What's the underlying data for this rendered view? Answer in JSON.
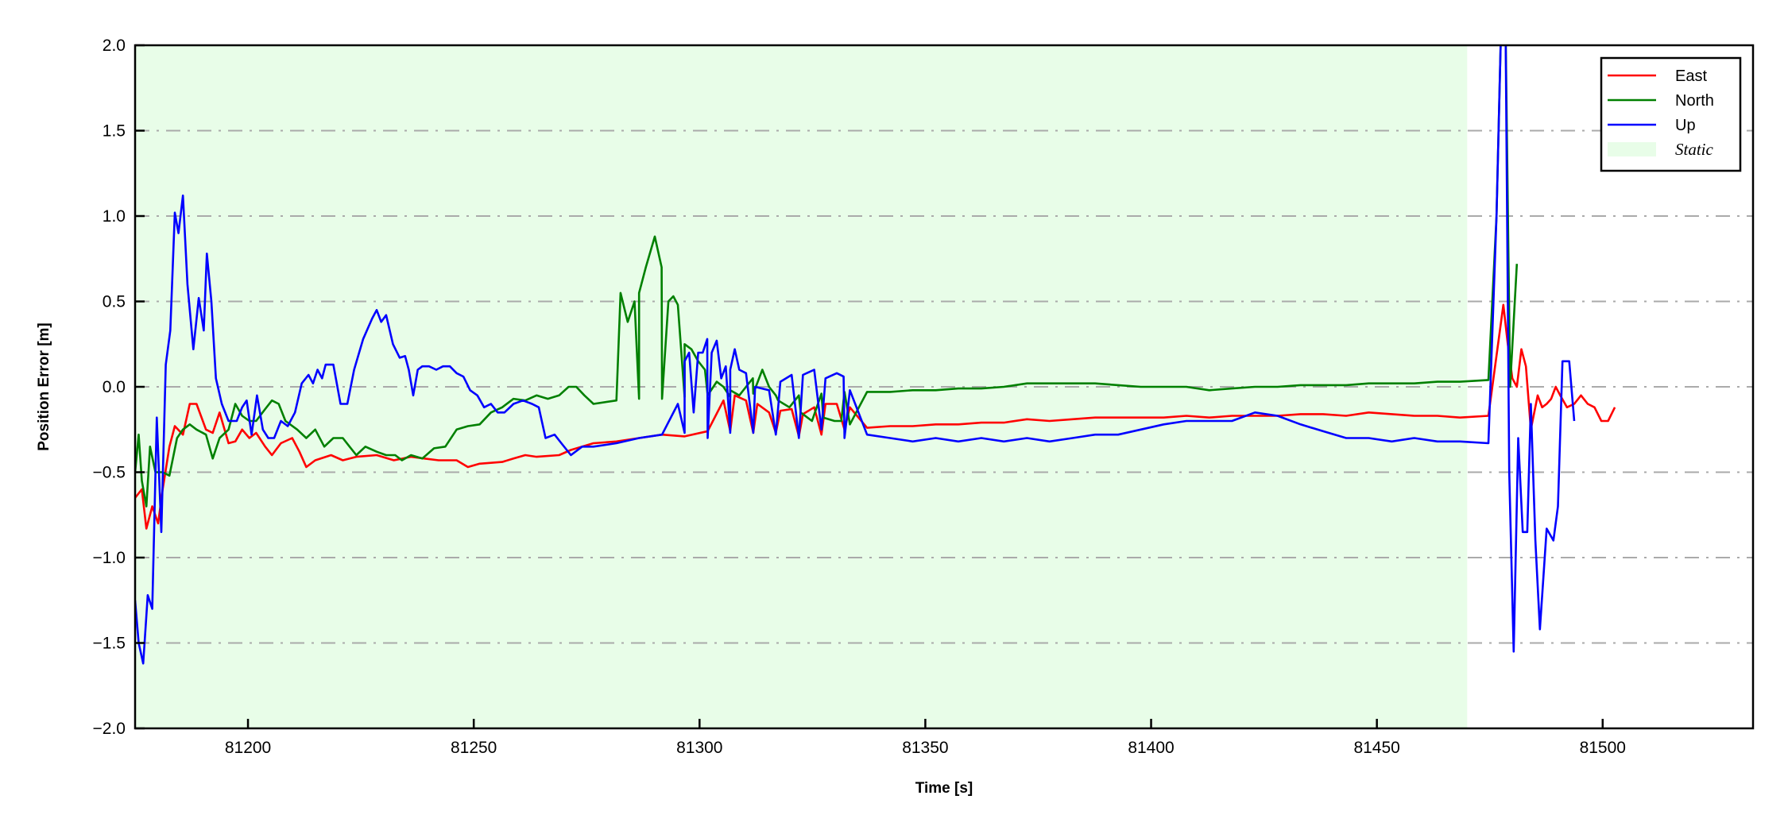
{
  "chart_data": {
    "type": "line",
    "title": "",
    "xlabel": "Time [s]",
    "ylabel": "Position Error [m]",
    "xlim": [
      81175.0,
      81533.3
    ],
    "ylim": [
      -2.0,
      2.0
    ],
    "xticks": [
      81200,
      81250,
      81300,
      81350,
      81400,
      81450,
      81500
    ],
    "xtick_labels": [
      "81200",
      "81250",
      "81300",
      "81350",
      "81400",
      "81450",
      "81500"
    ],
    "yticks": [
      -2.0,
      -1.5,
      -1.0,
      -0.5,
      0.0,
      0.5,
      1.0,
      1.5,
      2.0
    ],
    "ytick_labels": [
      "−2.0",
      "−1.5",
      "−1.0",
      "−0.5",
      "0.0",
      "0.5",
      "1.0",
      "1.5",
      "2.0"
    ],
    "grid": "horizontal dash-dot",
    "grid_color": "#aaaaaa",
    "legend_placement": "top-right",
    "shaded_regions": [
      {
        "name": "Static",
        "x": [
          81175.0,
          81470.0
        ],
        "color": "#e8fde8"
      }
    ],
    "series": [
      {
        "name": "East",
        "color": "#ff0000",
        "x": [
          81175.0,
          81176.5,
          81177.5,
          81178.8,
          81180.1,
          81181.1,
          81182.6,
          81183.8,
          81185.6,
          81187.1,
          81188.6,
          81190.7,
          81192.2,
          81193.7,
          81195.7,
          81197.2,
          81198.7,
          81200.3,
          81201.8,
          81203.8,
          81205.3,
          81207.3,
          81209.8,
          81211.4,
          81212.9,
          81214.9,
          81218.4,
          81221.0,
          81224.0,
          81228.5,
          81232.3,
          81236.1,
          81239.1,
          81242.2,
          81246.2,
          81248.7,
          81251.3,
          81256.3,
          81258.8,
          81261.4,
          81263.9,
          81268.9,
          81271.5,
          81276.5,
          81281.6,
          81286.6,
          81291.7,
          81296.7,
          81301.8,
          81306.8,
          81311.9,
          81316.9,
          81322.0,
          81327.0,
          81332.1,
          81337.1,
          81342.2,
          81347.2,
          81352.3,
          81357.3,
          81362.4,
          81367.4,
          81372.5,
          81377.5,
          81382.6,
          81387.6,
          81392.7,
          81397.7,
          81402.8,
          81407.8,
          81412.9,
          81417.9,
          81423.0,
          81428.0,
          81433.1,
          81438.1,
          81443.2,
          81448.2,
          81453.3,
          81458.3,
          81463.4,
          81468.4,
          81474.7,
          81478.0,
          81479.0,
          81480.0,
          81481.0,
          81482.0,
          81483.0,
          81484.1,
          81485.6,
          81486.6,
          81487.6,
          81488.6,
          81489.6,
          81490.6,
          81492.1,
          81493.7,
          81495.2,
          81496.7,
          81498.2,
          81499.7,
          81501.2,
          81502.7,
          81305.3,
          81307.8,
          81310.3,
          81312.8,
          81315.4,
          81317.9,
          81320.4,
          81322.9,
          81325.4,
          81327.9,
          81330.4,
          81333.3
        ],
        "y": [
          -0.65,
          -0.6,
          -0.83,
          -0.7,
          -0.8,
          -0.6,
          -0.35,
          -0.23,
          -0.28,
          -0.1,
          -0.1,
          -0.25,
          -0.27,
          -0.15,
          -0.33,
          -0.32,
          -0.25,
          -0.3,
          -0.27,
          -0.35,
          -0.4,
          -0.33,
          -0.3,
          -0.38,
          -0.47,
          -0.43,
          -0.4,
          -0.43,
          -0.41,
          -0.4,
          -0.43,
          -0.41,
          -0.42,
          -0.43,
          -0.43,
          -0.47,
          -0.45,
          -0.44,
          -0.42,
          -0.4,
          -0.41,
          -0.4,
          -0.37,
          -0.33,
          -0.32,
          -0.3,
          -0.28,
          -0.29,
          -0.26,
          -0.26,
          -0.27,
          -0.27,
          -0.29,
          -0.28,
          -0.25,
          -0.24,
          -0.23,
          -0.23,
          -0.22,
          -0.22,
          -0.21,
          -0.21,
          -0.19,
          -0.2,
          -0.19,
          -0.18,
          -0.18,
          -0.18,
          -0.18,
          -0.17,
          -0.18,
          -0.17,
          -0.17,
          -0.17,
          -0.16,
          -0.16,
          -0.17,
          -0.15,
          -0.16,
          -0.17,
          -0.17,
          -0.18,
          -0.17,
          0.48,
          0.25,
          0.05,
          0.0,
          0.22,
          0.12,
          -0.25,
          -0.05,
          -0.12,
          -0.1,
          -0.07,
          0.0,
          -0.05,
          -0.12,
          -0.1,
          -0.05,
          -0.1,
          -0.12,
          -0.2,
          -0.2,
          -0.12,
          -0.08,
          -0.05,
          -0.08,
          -0.1,
          -0.15,
          -0.14,
          -0.13,
          -0.16,
          -0.12,
          -0.1,
          -0.1,
          -0.12
        ]
      },
      {
        "name": "North",
        "color": "#008000",
        "x": [
          81175.0,
          81175.8,
          81176.5,
          81177.5,
          81178.3,
          81179.5,
          81181.1,
          81182.6,
          81184.3,
          81185.6,
          81187.1,
          81188.6,
          81190.7,
          81192.2,
          81193.7,
          81195.7,
          81197.2,
          81198.7,
          81200.3,
          81201.8,
          81203.8,
          81205.3,
          81206.8,
          81208.3,
          81210.9,
          81212.9,
          81214.9,
          81216.9,
          81218.9,
          81221.0,
          81222.5,
          81224.0,
          81226.0,
          81228.5,
          81230.6,
          81232.6,
          81234.1,
          81236.1,
          81238.6,
          81241.2,
          81243.7,
          81246.2,
          81248.7,
          81251.3,
          81253.8,
          81256.3,
          81258.8,
          81261.4,
          81263.9,
          81266.4,
          81268.9,
          81271.0,
          81272.7,
          81274.5,
          81276.5,
          81281.6,
          81286.6,
          81291.7,
          81296.7,
          81301.8,
          81306.8,
          81311.9,
          81316.9,
          81322.0,
          81327.0,
          81332.1,
          81337.1,
          81342.2,
          81347.2,
          81352.3,
          81357.3,
          81362.4,
          81367.4,
          81372.5,
          81377.5,
          81382.6,
          81387.6,
          81392.7,
          81397.7,
          81402.8,
          81407.8,
          81412.9,
          81417.9,
          81423.0,
          81428.0,
          81433.1,
          81438.1,
          81443.2,
          81448.2,
          81453.3,
          81458.3,
          81463.4,
          81468.4,
          81474.7,
          81476.5,
          81477.5,
          81478.5,
          81479.5,
          81481.0,
          81282.5,
          81284.1,
          81285.6,
          81286.6,
          81288.1,
          81290.1,
          81291.6,
          81293.1,
          81294.2,
          81295.2,
          81296.7,
          81298.2,
          81299.7,
          81301.2,
          81303.8,
          81305.3,
          81306.8,
          81308.8,
          81310.3,
          81311.8,
          81313.9,
          81315.4,
          81317.4,
          81319.9,
          81322.4,
          81324.9,
          81327.4,
          81329.9,
          81331.4,
          81333.3
        ],
        "y": [
          -0.5,
          -0.28,
          -0.55,
          -0.7,
          -0.35,
          -0.5,
          -0.5,
          -0.52,
          -0.3,
          -0.25,
          -0.22,
          -0.25,
          -0.28,
          -0.42,
          -0.3,
          -0.25,
          -0.1,
          -0.17,
          -0.2,
          -0.2,
          -0.13,
          -0.08,
          -0.1,
          -0.2,
          -0.25,
          -0.3,
          -0.25,
          -0.35,
          -0.3,
          -0.3,
          -0.35,
          -0.4,
          -0.35,
          -0.38,
          -0.4,
          -0.4,
          -0.43,
          -0.4,
          -0.42,
          -0.36,
          -0.35,
          -0.25,
          -0.23,
          -0.22,
          -0.15,
          -0.12,
          -0.07,
          -0.08,
          -0.05,
          -0.07,
          -0.05,
          0.0,
          0.0,
          -0.05,
          -0.1,
          -0.08,
          -0.07,
          -0.07,
          -0.06,
          -0.05,
          -0.06,
          -0.04,
          -0.05,
          -0.05,
          -0.04,
          -0.03,
          -0.03,
          -0.03,
          -0.02,
          -0.02,
          -0.01,
          -0.01,
          0.0,
          0.02,
          0.02,
          0.02,
          0.02,
          0.01,
          0.0,
          0.0,
          0.0,
          -0.02,
          -0.01,
          0.0,
          0.0,
          0.01,
          0.01,
          0.01,
          0.02,
          0.02,
          0.02,
          0.03,
          0.03,
          0.04,
          1.0,
          2.1,
          2.1,
          0.0,
          0.72,
          0.55,
          0.38,
          0.5,
          0.55,
          0.7,
          0.88,
          0.7,
          0.5,
          0.53,
          0.48,
          0.25,
          0.22,
          0.15,
          0.1,
          0.03,
          0.0,
          -0.02,
          -0.05,
          0.0,
          0.05,
          0.1,
          0.0,
          -0.08,
          -0.12,
          -0.15,
          -0.2,
          -0.18,
          -0.2,
          -0.2,
          -0.22
        ]
      },
      {
        "name": "Up",
        "color": "#0000ff",
        "x": [
          81175.0,
          81175.8,
          81176.8,
          81177.8,
          81178.8,
          81179.8,
          81180.8,
          81181.8,
          81182.8,
          81183.8,
          81184.6,
          81185.6,
          81186.6,
          81187.9,
          81189.1,
          81190.2,
          81190.9,
          81191.9,
          81192.9,
          81194.2,
          81195.7,
          81197.5,
          81198.7,
          81199.7,
          81200.8,
          81202.0,
          81203.3,
          81204.5,
          81205.8,
          81207.3,
          81208.8,
          81210.4,
          81211.9,
          81213.4,
          81214.4,
          81215.4,
          81216.4,
          81217.2,
          81218.9,
          81220.5,
          81222.0,
          81223.5,
          81225.5,
          81227.5,
          81228.5,
          81229.5,
          81230.6,
          81232.1,
          81233.6,
          81234.8,
          81235.6,
          81236.6,
          81237.6,
          81238.6,
          81240.1,
          81241.7,
          81243.2,
          81244.7,
          81246.2,
          81247.7,
          81249.2,
          81250.8,
          81252.3,
          81253.8,
          81255.3,
          81256.8,
          81258.8,
          81260.9,
          81262.9,
          81264.4,
          81265.9,
          81267.9,
          81269.4,
          81271.5,
          81274.0,
          81276.5,
          81281.6,
          81286.6,
          81291.7,
          81296.7,
          81301.8,
          81306.8,
          81311.9,
          81316.9,
          81322.0,
          81327.0,
          81332.1,
          81337.1,
          81342.2,
          81347.2,
          81352.3,
          81357.3,
          81362.4,
          81367.4,
          81372.5,
          81377.5,
          81382.6,
          81387.6,
          81392.7,
          81397.7,
          81402.8,
          81407.8,
          81412.9,
          81417.9,
          81423.0,
          81428.0,
          81433.1,
          81438.1,
          81443.2,
          81448.2,
          81453.3,
          81458.3,
          81463.4,
          81468.4,
          81474.7,
          81476.5,
          81477.5,
          81478.5,
          81479.3,
          81480.3,
          81481.3,
          81482.3,
          81483.3,
          81484.1,
          81485.1,
          81486.1,
          81487.6,
          81489.1,
          81490.1,
          81491.1,
          81492.6,
          81493.7,
          81295.2,
          81296.7,
          81297.7,
          81298.7,
          81299.7,
          81300.7,
          81301.7,
          81302.7,
          81303.8,
          81304.8,
          81305.8,
          81306.8,
          81307.8,
          81308.8,
          81310.3,
          81312.3,
          81315.4,
          81317.9,
          81320.4,
          81322.9,
          81325.4,
          81327.9,
          81330.4,
          81331.9,
          81333.3
        ],
        "y": [
          -1.25,
          -1.5,
          -1.62,
          -1.22,
          -1.3,
          -0.18,
          -0.85,
          0.13,
          0.33,
          1.02,
          0.9,
          1.12,
          0.6,
          0.22,
          0.52,
          0.33,
          0.78,
          0.5,
          0.05,
          -0.1,
          -0.2,
          -0.2,
          -0.12,
          -0.08,
          -0.28,
          -0.05,
          -0.25,
          -0.3,
          -0.3,
          -0.2,
          -0.23,
          -0.15,
          0.02,
          0.07,
          0.02,
          0.1,
          0.05,
          0.13,
          0.13,
          -0.1,
          -0.1,
          0.1,
          0.28,
          0.4,
          0.45,
          0.38,
          0.42,
          0.25,
          0.17,
          0.18,
          0.1,
          -0.05,
          0.1,
          0.12,
          0.12,
          0.1,
          0.12,
          0.12,
          0.08,
          0.06,
          -0.02,
          -0.05,
          -0.12,
          -0.1,
          -0.15,
          -0.15,
          -0.1,
          -0.08,
          -0.1,
          -0.12,
          -0.3,
          -0.28,
          -0.33,
          -0.4,
          -0.35,
          -0.35,
          -0.33,
          -0.3,
          -0.28,
          -0.27,
          -0.3,
          -0.27,
          -0.27,
          -0.28,
          -0.3,
          -0.25,
          -0.3,
          -0.28,
          -0.3,
          -0.32,
          -0.3,
          -0.32,
          -0.3,
          -0.32,
          -0.3,
          -0.32,
          -0.3,
          -0.28,
          -0.28,
          -0.25,
          -0.22,
          -0.2,
          -0.2,
          -0.2,
          -0.15,
          -0.17,
          -0.22,
          -0.26,
          -0.3,
          -0.3,
          -0.32,
          -0.3,
          -0.32,
          -0.32,
          -0.33,
          1.0,
          2.1,
          2.1,
          -0.5,
          -1.55,
          -0.3,
          -0.85,
          -0.85,
          -0.1,
          -0.9,
          -1.42,
          -0.83,
          -0.9,
          -0.7,
          0.15,
          0.15,
          -0.2,
          -0.1,
          0.15,
          0.2,
          -0.15,
          0.2,
          0.2,
          0.28,
          0.2,
          0.27,
          0.05,
          0.12,
          0.1,
          0.22,
          0.1,
          0.08,
          0.0,
          -0.02,
          0.03,
          0.07,
          0.07,
          0.1,
          0.05,
          0.08,
          0.06,
          -0.02
        ]
      }
    ],
    "legend": [
      {
        "label": "East",
        "color": "#ff0000",
        "kind": "line"
      },
      {
        "label": "North",
        "color": "#008000",
        "kind": "line"
      },
      {
        "label": "Up",
        "color": "#0000ff",
        "kind": "line"
      },
      {
        "label": "Static",
        "color": "#e8fde8",
        "kind": "patch"
      }
    ]
  }
}
